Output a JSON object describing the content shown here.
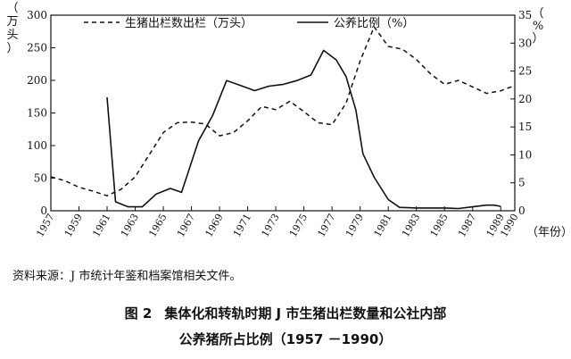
{
  "chart_data": {
    "type": "line",
    "x_unit": "（年份）",
    "left_axis_unit": "（万头）",
    "right_axis_unit": "（%）",
    "y_left_lim": [
      0,
      300
    ],
    "y_right_lim": [
      0,
      35
    ],
    "x_lim": [
      1957,
      1990
    ],
    "y_left_ticks": [
      "0",
      "50",
      "100",
      "150",
      "200",
      "250",
      "300"
    ],
    "y_right_ticks": [
      "0",
      "5",
      "10",
      "15",
      "20",
      "25",
      "30",
      "35"
    ],
    "x_ticks": [
      1957,
      1959,
      1961,
      1963,
      1965,
      1967,
      1969,
      1971,
      1973,
      1975,
      1977,
      1979,
      1981,
      1983,
      1985,
      1987,
      1989,
      1990
    ],
    "x_tick_labels": [
      "1957",
      "1959",
      "1961",
      "1963",
      "1965",
      "1967",
      "1969",
      "1971",
      "1973",
      "1975",
      "1977",
      "1979",
      "1981",
      "1983",
      "1985",
      "1987",
      "1989",
      "1990"
    ],
    "series": [
      {
        "name": "生猪出栏数出栏（万头）",
        "axis": "left",
        "style": "dashed",
        "points": [
          [
            1957,
            52
          ],
          [
            1958,
            46
          ],
          [
            1959,
            36
          ],
          [
            1960,
            30
          ],
          [
            1961,
            23
          ],
          [
            1962,
            33
          ],
          [
            1963,
            52
          ],
          [
            1964,
            86
          ],
          [
            1965,
            120
          ],
          [
            1966,
            135
          ],
          [
            1967,
            136
          ],
          [
            1968,
            133
          ],
          [
            1969,
            115
          ],
          [
            1970,
            120
          ],
          [
            1971,
            138
          ],
          [
            1972,
            160
          ],
          [
            1973,
            155
          ],
          [
            1974,
            168
          ],
          [
            1975,
            152
          ],
          [
            1976,
            135
          ],
          [
            1977,
            132
          ],
          [
            1978,
            165
          ],
          [
            1979,
            230
          ],
          [
            1980,
            282
          ],
          [
            1981,
            252
          ],
          [
            1982,
            248
          ],
          [
            1983,
            232
          ],
          [
            1984,
            210
          ],
          [
            1985,
            194
          ],
          [
            1986,
            200
          ],
          [
            1987,
            190
          ],
          [
            1988,
            180
          ],
          [
            1989,
            184
          ],
          [
            1990,
            192
          ]
        ]
      },
      {
        "name": "公养比例（%）",
        "axis": "right",
        "style": "solid",
        "points": [
          [
            1961,
            20.3
          ],
          [
            1961.6,
            1.6
          ],
          [
            1962.5,
            0.7
          ],
          [
            1963.5,
            0.7
          ],
          [
            1964.5,
            3.0
          ],
          [
            1965.5,
            4.0
          ],
          [
            1966.3,
            3.3
          ],
          [
            1967.5,
            12.5
          ],
          [
            1968.5,
            17.0
          ],
          [
            1969.5,
            23.3
          ],
          [
            1970.5,
            22.4
          ],
          [
            1971.5,
            21.5
          ],
          [
            1972.5,
            22.3
          ],
          [
            1973.5,
            22.6
          ],
          [
            1974.5,
            23.3
          ],
          [
            1975.5,
            24.3
          ],
          [
            1976.4,
            28.7
          ],
          [
            1977.3,
            27.0
          ],
          [
            1978,
            24.0
          ],
          [
            1978.7,
            18.0
          ],
          [
            1979.2,
            10.2
          ],
          [
            1980,
            6.0
          ],
          [
            1981,
            2.0
          ],
          [
            1981.8,
            0.6
          ],
          [
            1983,
            0.5
          ],
          [
            1984,
            0.5
          ],
          [
            1985,
            0.5
          ],
          [
            1986,
            0.4
          ],
          [
            1987,
            0.7
          ],
          [
            1988,
            1.0
          ],
          [
            1988.5,
            1.0
          ],
          [
            1989,
            0.8
          ]
        ]
      }
    ]
  },
  "note": "资料来源：J 市统计年鉴和档案馆相关文件。",
  "caption": {
    "label": "图 2",
    "title_line1": "集体化和转轨时期 J 市生猪出栏数量和公社内部",
    "title_line2": "公养猪所占比例（1957 －1990）"
  },
  "colors": {
    "line": "#111111",
    "background": "#ffffff"
  }
}
